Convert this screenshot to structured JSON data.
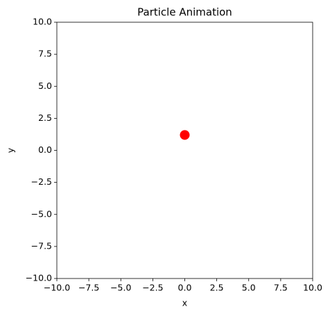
{
  "chart_data": {
    "type": "scatter",
    "title": "Particle Animation",
    "x_label": "x",
    "y_label": "y",
    "x": [
      0
    ],
    "values": [
      1.2
    ],
    "color": "#ff0000",
    "xlim": [
      -10,
      10
    ],
    "ylim": [
      -10,
      10
    ],
    "xticks": [
      {
        "value": -10,
        "label": "−10.0"
      },
      {
        "value": -7.5,
        "label": "−7.5"
      },
      {
        "value": -5,
        "label": "−5.0"
      },
      {
        "value": -2.5,
        "label": "−2.5"
      },
      {
        "value": 0,
        "label": "0.0"
      },
      2.5,
      {
        "value": 5,
        "label": "5.0"
      },
      7.5,
      {
        "value": 10,
        "label": "10.0"
      }
    ],
    "yticks": [
      {
        "value": -10,
        "label": "−10.0"
      },
      {
        "value": -7.5,
        "label": "−7.5"
      },
      {
        "value": -5,
        "label": "−5.0"
      },
      {
        "value": -2.5,
        "label": "−2.5"
      },
      {
        "value": 0,
        "label": "0.0"
      },
      2.5,
      {
        "value": 5,
        "label": "5.0"
      },
      7.5,
      {
        "value": 10,
        "label": "10.0"
      }
    ],
    "grid": false
  }
}
